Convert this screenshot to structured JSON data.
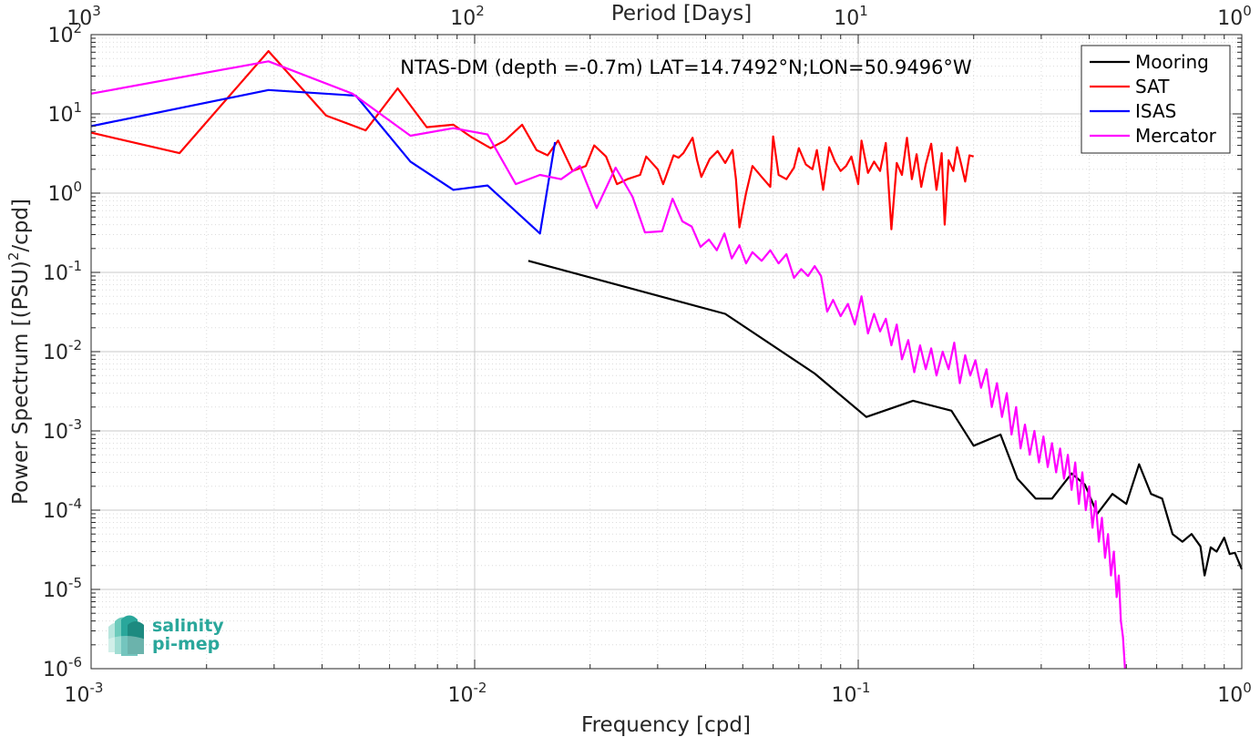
{
  "chart_data": {
    "type": "line",
    "title": "NTAS-DM (depth =-0.7m) LAT=14.7492°N;LON=50.9496°W",
    "xlabel": "Frequency [cpd]",
    "ylabel_parts": [
      "Power Spectrum [(PSU)",
      "2",
      "/cpd]"
    ],
    "x2label": "Period [Days]",
    "x_scale": "log",
    "y_scale": "log",
    "xlim": [
      0.001,
      1
    ],
    "ylim": [
      1e-06,
      100
    ],
    "grid": true,
    "legend_position": "top-right",
    "x_ticks": [
      {
        "base": "10",
        "exp": "-3",
        "value": 0.001
      },
      {
        "base": "10",
        "exp": "-2",
        "value": 0.01
      },
      {
        "base": "10",
        "exp": "-1",
        "value": 0.1
      },
      {
        "base": "10",
        "exp": "0",
        "value": 1
      }
    ],
    "x2_ticks": [
      {
        "base": "10",
        "exp": "3",
        "value": 0.001
      },
      {
        "base": "10",
        "exp": "2",
        "value": 0.01
      },
      {
        "base": "10",
        "exp": "1",
        "value": 0.1
      },
      {
        "base": "10",
        "exp": "0",
        "value": 1
      }
    ],
    "y_ticks": [
      {
        "base": "10",
        "exp": "2",
        "value": 100
      },
      {
        "base": "10",
        "exp": "1",
        "value": 10
      },
      {
        "base": "10",
        "exp": "0",
        "value": 1
      },
      {
        "base": "10",
        "exp": "-1",
        "value": 0.1
      },
      {
        "base": "10",
        "exp": "-2",
        "value": 0.01
      },
      {
        "base": "10",
        "exp": "-3",
        "value": 0.001
      },
      {
        "base": "10",
        "exp": "-4",
        "value": 0.0001
      },
      {
        "base": "10",
        "exp": "-5",
        "value": 1e-05
      },
      {
        "base": "10",
        "exp": "-6",
        "value": 1e-06
      }
    ],
    "series": [
      {
        "name": "Mooring",
        "color": "#000000",
        "points": [
          [
            0.0138,
            0.14
          ],
          [
            0.045,
            0.03
          ],
          [
            0.077,
            0.0053
          ],
          [
            0.105,
            0.0015
          ],
          [
            0.139,
            0.0024
          ],
          [
            0.175,
            0.0018
          ],
          [
            0.2,
            0.00065
          ],
          [
            0.235,
            0.0009
          ],
          [
            0.26,
            0.00025
          ],
          [
            0.29,
            0.00014
          ],
          [
            0.32,
            0.00014
          ],
          [
            0.36,
            0.00029
          ],
          [
            0.39,
            0.00021
          ],
          [
            0.42,
            9e-05
          ],
          [
            0.46,
            0.00016
          ],
          [
            0.5,
            0.00012
          ],
          [
            0.54,
            0.00038
          ],
          [
            0.58,
            0.00016
          ],
          [
            0.62,
            0.00014
          ],
          [
            0.66,
            5e-05
          ],
          [
            0.7,
            4e-05
          ],
          [
            0.74,
            5e-05
          ],
          [
            0.78,
            3.5e-05
          ],
          [
            0.8,
            1.5e-05
          ],
          [
            0.83,
            3.4e-05
          ],
          [
            0.86,
            3e-05
          ],
          [
            0.9,
            4.5e-05
          ],
          [
            0.93,
            2.8e-05
          ],
          [
            0.96,
            2.9e-05
          ],
          [
            1.0,
            1.8e-05
          ]
        ]
      },
      {
        "name": "SAT",
        "color": "#ff0000",
        "points": [
          [
            0.001,
            5.8
          ],
          [
            0.0017,
            3.2
          ],
          [
            0.0029,
            62
          ],
          [
            0.0041,
            9.5
          ],
          [
            0.0052,
            6.2
          ],
          [
            0.0063,
            21
          ],
          [
            0.0075,
            6.8
          ],
          [
            0.0088,
            7.3
          ],
          [
            0.0098,
            5.1
          ],
          [
            0.011,
            3.7
          ],
          [
            0.012,
            4.6
          ],
          [
            0.0133,
            7.3
          ],
          [
            0.0145,
            3.5
          ],
          [
            0.0155,
            3.0
          ],
          [
            0.0165,
            4.6
          ],
          [
            0.018,
            1.9
          ],
          [
            0.0195,
            2.2
          ],
          [
            0.0205,
            4.0
          ],
          [
            0.022,
            2.9
          ],
          [
            0.0235,
            1.3
          ],
          [
            0.025,
            1.5
          ],
          [
            0.027,
            1.7
          ],
          [
            0.028,
            2.9
          ],
          [
            0.03,
            2.0
          ],
          [
            0.031,
            1.3
          ],
          [
            0.033,
            3.0
          ],
          [
            0.034,
            2.8
          ],
          [
            0.035,
            3.2
          ],
          [
            0.037,
            5.0
          ],
          [
            0.038,
            2.6
          ],
          [
            0.039,
            1.6
          ],
          [
            0.041,
            2.7
          ],
          [
            0.043,
            3.4
          ],
          [
            0.045,
            2.4
          ],
          [
            0.047,
            3.5
          ],
          [
            0.048,
            1.5
          ],
          [
            0.049,
            0.37
          ],
          [
            0.051,
            1.0
          ],
          [
            0.053,
            2.2
          ],
          [
            0.056,
            1.6
          ],
          [
            0.059,
            1.2
          ],
          [
            0.06,
            5.2
          ],
          [
            0.062,
            1.7
          ],
          [
            0.065,
            1.5
          ],
          [
            0.068,
            2.1
          ],
          [
            0.07,
            3.7
          ],
          [
            0.073,
            2.3
          ],
          [
            0.076,
            2.0
          ],
          [
            0.078,
            3.5
          ],
          [
            0.081,
            1.1
          ],
          [
            0.084,
            3.8
          ],
          [
            0.087,
            2.5
          ],
          [
            0.09,
            1.9
          ],
          [
            0.093,
            2.2
          ],
          [
            0.096,
            2.9
          ],
          [
            0.1,
            1.3
          ],
          [
            0.102,
            4.6
          ],
          [
            0.106,
            1.8
          ],
          [
            0.11,
            2.5
          ],
          [
            0.114,
            1.9
          ],
          [
            0.118,
            4.3
          ],
          [
            0.122,
            0.35
          ],
          [
            0.126,
            2.4
          ],
          [
            0.13,
            1.7
          ],
          [
            0.134,
            5.0
          ],
          [
            0.138,
            1.5
          ],
          [
            0.142,
            3.1
          ],
          [
            0.146,
            1.2
          ],
          [
            0.15,
            2.3
          ],
          [
            0.155,
            4.2
          ],
          [
            0.16,
            1.1
          ],
          [
            0.165,
            3.2
          ],
          [
            0.168,
            0.4
          ],
          [
            0.172,
            2.6
          ],
          [
            0.177,
            1.9
          ],
          [
            0.181,
            3.8
          ],
          [
            0.186,
            2.2
          ],
          [
            0.19,
            1.4
          ],
          [
            0.195,
            3.0
          ],
          [
            0.2,
            2.9
          ]
        ]
      },
      {
        "name": "ISAS",
        "color": "#0000ff",
        "points": [
          [
            0.001,
            7.0
          ],
          [
            0.0029,
            20
          ],
          [
            0.0049,
            17
          ],
          [
            0.0068,
            2.5
          ],
          [
            0.0088,
            1.1
          ],
          [
            0.0108,
            1.25
          ],
          [
            0.0148,
            0.31
          ],
          [
            0.0162,
            4.4
          ]
        ]
      },
      {
        "name": "Mercator",
        "color": "#ff00ff",
        "points": [
          [
            0.001,
            18
          ],
          [
            0.0029,
            46
          ],
          [
            0.0048,
            18
          ],
          [
            0.0068,
            5.3
          ],
          [
            0.0088,
            6.6
          ],
          [
            0.0108,
            5.5
          ],
          [
            0.0128,
            1.3
          ],
          [
            0.0148,
            1.7
          ],
          [
            0.0168,
            1.5
          ],
          [
            0.0188,
            2.2
          ],
          [
            0.0208,
            0.65
          ],
          [
            0.0233,
            2.1
          ],
          [
            0.0258,
            0.9
          ],
          [
            0.0278,
            0.32
          ],
          [
            0.0308,
            0.33
          ],
          [
            0.0328,
            0.85
          ],
          [
            0.0348,
            0.44
          ],
          [
            0.0368,
            0.38
          ],
          [
            0.0388,
            0.21
          ],
          [
            0.0408,
            0.26
          ],
          [
            0.0428,
            0.19
          ],
          [
            0.0448,
            0.31
          ],
          [
            0.0468,
            0.15
          ],
          [
            0.049,
            0.22
          ],
          [
            0.051,
            0.13
          ],
          [
            0.053,
            0.18
          ],
          [
            0.056,
            0.14
          ],
          [
            0.059,
            0.19
          ],
          [
            0.062,
            0.13
          ],
          [
            0.065,
            0.17
          ],
          [
            0.068,
            0.085
          ],
          [
            0.071,
            0.11
          ],
          [
            0.074,
            0.09
          ],
          [
            0.077,
            0.12
          ],
          [
            0.08,
            0.09
          ],
          [
            0.083,
            0.032
          ],
          [
            0.086,
            0.045
          ],
          [
            0.09,
            0.028
          ],
          [
            0.094,
            0.04
          ],
          [
            0.098,
            0.022
          ],
          [
            0.102,
            0.05
          ],
          [
            0.106,
            0.017
          ],
          [
            0.11,
            0.03
          ],
          [
            0.114,
            0.018
          ],
          [
            0.118,
            0.026
          ],
          [
            0.122,
            0.012
          ],
          [
            0.126,
            0.022
          ],
          [
            0.13,
            0.008
          ],
          [
            0.135,
            0.014
          ],
          [
            0.14,
            0.0055
          ],
          [
            0.145,
            0.012
          ],
          [
            0.15,
            0.006
          ],
          [
            0.155,
            0.011
          ],
          [
            0.16,
            0.005
          ],
          [
            0.166,
            0.01
          ],
          [
            0.172,
            0.006
          ],
          [
            0.178,
            0.013
          ],
          [
            0.184,
            0.004
          ],
          [
            0.19,
            0.009
          ],
          [
            0.196,
            0.005
          ],
          [
            0.202,
            0.0078
          ],
          [
            0.209,
            0.0035
          ],
          [
            0.216,
            0.006
          ],
          [
            0.223,
            0.002
          ],
          [
            0.23,
            0.004
          ],
          [
            0.237,
            0.0015
          ],
          [
            0.244,
            0.003
          ],
          [
            0.251,
            0.0009
          ],
          [
            0.258,
            0.002
          ],
          [
            0.265,
            0.0006
          ],
          [
            0.272,
            0.0012
          ],
          [
            0.28,
            0.0005
          ],
          [
            0.288,
            0.001
          ],
          [
            0.296,
            0.0004
          ],
          [
            0.304,
            0.00085
          ],
          [
            0.312,
            0.00035
          ],
          [
            0.32,
            0.0007
          ],
          [
            0.328,
            0.0003
          ],
          [
            0.336,
            0.0006
          ],
          [
            0.344,
            0.00025
          ],
          [
            0.352,
            0.0005
          ],
          [
            0.36,
            0.00018
          ],
          [
            0.368,
            0.0004
          ],
          [
            0.376,
            0.00012
          ],
          [
            0.384,
            0.0003
          ],
          [
            0.392,
            0.0001
          ],
          [
            0.4,
            0.0002
          ],
          [
            0.408,
            6e-05
          ],
          [
            0.416,
            0.00013
          ],
          [
            0.424,
            4e-05
          ],
          [
            0.432,
            8e-05
          ],
          [
            0.44,
            2.5e-05
          ],
          [
            0.448,
            5e-05
          ],
          [
            0.456,
            1.5e-05
          ],
          [
            0.464,
            3e-05
          ],
          [
            0.472,
            8e-06
          ],
          [
            0.478,
            1.5e-05
          ],
          [
            0.484,
            4e-06
          ],
          [
            0.49,
            2.5e-06
          ],
          [
            0.496,
            1e-06
          ]
        ]
      }
    ]
  },
  "logo": {
    "line1": "salinity",
    "line2": "pi-mep"
  }
}
